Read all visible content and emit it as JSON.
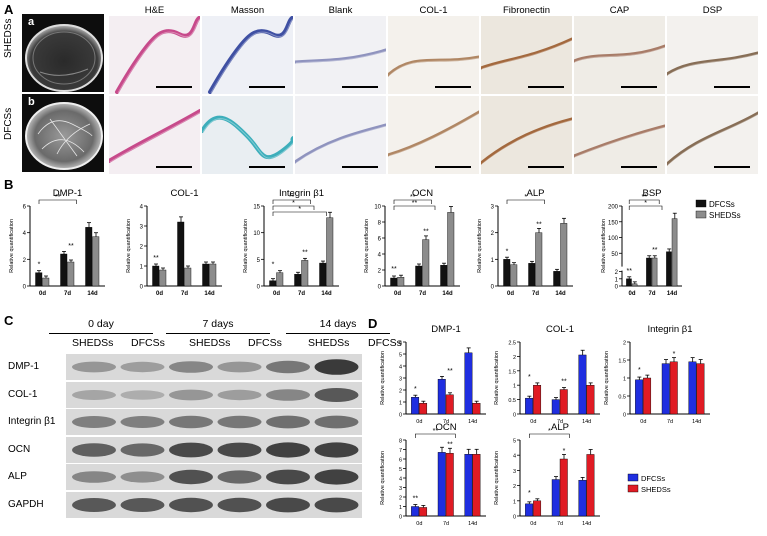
{
  "panels": {
    "A": "A",
    "B": "B",
    "C": "C",
    "D": "D"
  },
  "histology": {
    "stains": [
      "H&E",
      "Masson",
      "Blank",
      "COL-1",
      "Fibronectin",
      "CAP",
      "DSP"
    ],
    "rows": [
      {
        "label": "SHEDSs",
        "letter": "a"
      },
      {
        "label": "DFCSs",
        "letter": "b"
      }
    ]
  },
  "western": {
    "days": [
      "0 day",
      "7 days",
      "14 days"
    ],
    "cell_headers": [
      "SHEDSs",
      "DFCSs",
      "SHEDSs",
      "DFCSs",
      "SHEDSs",
      "DFCSs"
    ],
    "proteins": [
      "DMP-1",
      "COL-1",
      "Integrin β1",
      "OCN",
      "ALP",
      "GAPDH"
    ]
  },
  "chart_data": [
    {
      "type": "bar",
      "panel": "B",
      "title": "DMP-1",
      "ylabel": "Relative quantification",
      "categories": [
        "0d",
        "7d",
        "14d"
      ],
      "ylim": [
        0,
        6
      ],
      "yticks": [
        0,
        2,
        4,
        6
      ],
      "series": [
        {
          "name": "DFCSs",
          "values": [
            1.0,
            2.4,
            4.4
          ]
        },
        {
          "name": "SHEDSs",
          "values": [
            0.6,
            1.8,
            3.7
          ]
        }
      ],
      "annotations": [
        "*",
        "**",
        "**"
      ]
    },
    {
      "type": "bar",
      "panel": "B",
      "title": "COL-1",
      "ylabel": "Relative quantification",
      "categories": [
        "0d",
        "7d",
        "14d"
      ],
      "ylim": [
        0,
        4
      ],
      "yticks": [
        0,
        1,
        2,
        3,
        4
      ],
      "series": [
        {
          "name": "DFCSs",
          "values": [
            1.0,
            3.2,
            1.1
          ]
        },
        {
          "name": "SHEDSs",
          "values": [
            0.8,
            0.9,
            1.1
          ]
        }
      ],
      "annotations": [
        "**"
      ]
    },
    {
      "type": "bar",
      "panel": "B",
      "title": "Integrin β1",
      "ylabel": "Relative quantification",
      "categories": [
        "0d",
        "7d",
        "14d"
      ],
      "ylim": [
        0,
        15
      ],
      "yticks": [
        0,
        5,
        10,
        15
      ],
      "series": [
        {
          "name": "DFCSs",
          "values": [
            1.0,
            2.2,
            4.3
          ]
        },
        {
          "name": "SHEDSs",
          "values": [
            2.5,
            4.8,
            12.8
          ]
        }
      ],
      "annotations": [
        "*",
        "**",
        "**",
        "*",
        "*"
      ]
    },
    {
      "type": "bar",
      "panel": "B",
      "title": "OCN",
      "ylabel": "Relative quantification",
      "categories": [
        "0d",
        "7d",
        "14d"
      ],
      "ylim": [
        0,
        10
      ],
      "yticks": [
        0,
        2,
        4,
        6,
        8,
        10
      ],
      "series": [
        {
          "name": "DFCSs",
          "values": [
            1.0,
            2.5,
            2.6
          ]
        },
        {
          "name": "SHEDSs",
          "values": [
            1.1,
            5.8,
            9.2
          ]
        }
      ],
      "annotations": [
        "**",
        "**",
        "**",
        "**"
      ]
    },
    {
      "type": "bar",
      "panel": "B",
      "title": "ALP",
      "ylabel": "Relative quantification",
      "categories": [
        "0d",
        "7d",
        "14d"
      ],
      "ylim": [
        0,
        3
      ],
      "yticks": [
        0,
        1,
        2,
        3
      ],
      "series": [
        {
          "name": "DFCSs",
          "values": [
            1.0,
            0.85,
            0.55
          ]
        },
        {
          "name": "SHEDSs",
          "values": [
            0.8,
            2.0,
            2.35
          ]
        }
      ],
      "annotations": [
        "*",
        "**",
        "*"
      ]
    },
    {
      "type": "bar",
      "panel": "B",
      "title": "BSP",
      "ylabel": "Relative quantification",
      "categories": [
        "0d",
        "7d",
        "14d"
      ],
      "ylim": [
        0,
        200
      ],
      "yticks": [
        0,
        1,
        2,
        50,
        100,
        150,
        200
      ],
      "series": [
        {
          "name": "DFCSs",
          "values": [
            1.0,
            35,
            55
          ]
        },
        {
          "name": "SHEDSs",
          "values": [
            0.3,
            35,
            160
          ]
        }
      ],
      "annotations": [
        "**",
        "**",
        "**",
        "*"
      ]
    },
    {
      "type": "bar",
      "panel": "D",
      "title": "DMP-1",
      "ylabel": "Relative quantification",
      "categories": [
        "0d",
        "7d",
        "14d"
      ],
      "ylim": [
        0,
        6
      ],
      "yticks": [
        0,
        1,
        2,
        3,
        4,
        5,
        6
      ],
      "series": [
        {
          "name": "DFCSs",
          "values": [
            1.4,
            2.9,
            5.1
          ]
        },
        {
          "name": "SHEDSs",
          "values": [
            0.9,
            1.6,
            0.9
          ]
        }
      ],
      "annotations": [
        "*",
        "**"
      ]
    },
    {
      "type": "bar",
      "panel": "D",
      "title": "COL-1",
      "ylabel": "Relative quantification",
      "categories": [
        "0d",
        "7d",
        "14d"
      ],
      "ylim": [
        0,
        2.5
      ],
      "yticks": [
        0,
        0.5,
        1.0,
        1.5,
        2.0,
        2.5
      ],
      "series": [
        {
          "name": "DFCSs",
          "values": [
            0.55,
            0.5,
            2.05
          ]
        },
        {
          "name": "SHEDSs",
          "values": [
            1.0,
            0.85,
            1.0
          ]
        }
      ],
      "annotations": [
        "*",
        "**"
      ]
    },
    {
      "type": "bar",
      "panel": "D",
      "title": "Integrin β1",
      "ylabel": "Relative quantification",
      "categories": [
        "0d",
        "7d",
        "14d"
      ],
      "ylim": [
        0,
        2.0
      ],
      "yticks": [
        0,
        0.5,
        1.0,
        1.5,
        2.0
      ],
      "series": [
        {
          "name": "DFCSs",
          "values": [
            0.95,
            1.4,
            1.45
          ]
        },
        {
          "name": "SHEDSs",
          "values": [
            1.0,
            1.45,
            1.4
          ]
        }
      ],
      "annotations": [
        "*",
        "*"
      ]
    },
    {
      "type": "bar",
      "panel": "D",
      "title": "OCN",
      "ylabel": "Relative quantification",
      "categories": [
        "0d",
        "7d",
        "14d"
      ],
      "ylim": [
        0,
        8
      ],
      "yticks": [
        0,
        1,
        2,
        3,
        4,
        5,
        6,
        7,
        8
      ],
      "series": [
        {
          "name": "DFCSs",
          "values": [
            1.0,
            6.7,
            6.5
          ]
        },
        {
          "name": "SHEDSs",
          "values": [
            0.9,
            6.6,
            6.5
          ]
        }
      ],
      "annotations": [
        "**",
        "**",
        "**"
      ]
    },
    {
      "type": "bar",
      "panel": "D",
      "title": "ALP",
      "ylabel": "Relative quantification",
      "categories": [
        "0d",
        "7d",
        "14d"
      ],
      "ylim": [
        0,
        5
      ],
      "yticks": [
        0,
        1,
        2,
        3,
        4,
        5
      ],
      "series": [
        {
          "name": "DFCSs",
          "values": [
            0.8,
            2.4,
            2.35
          ]
        },
        {
          "name": "SHEDSs",
          "values": [
            1.0,
            3.75,
            4.05
          ]
        }
      ],
      "annotations": [
        "*",
        "*",
        "*"
      ]
    }
  ],
  "legend_B": {
    "items": [
      "DFCSs",
      "SHEDSs"
    ],
    "colors": [
      "#111111",
      "#8c8c8c"
    ]
  },
  "legend_D": {
    "items": [
      "DFCSs",
      "SHEDSs"
    ],
    "colors": [
      "#1f2ee0",
      "#e01b24"
    ]
  }
}
